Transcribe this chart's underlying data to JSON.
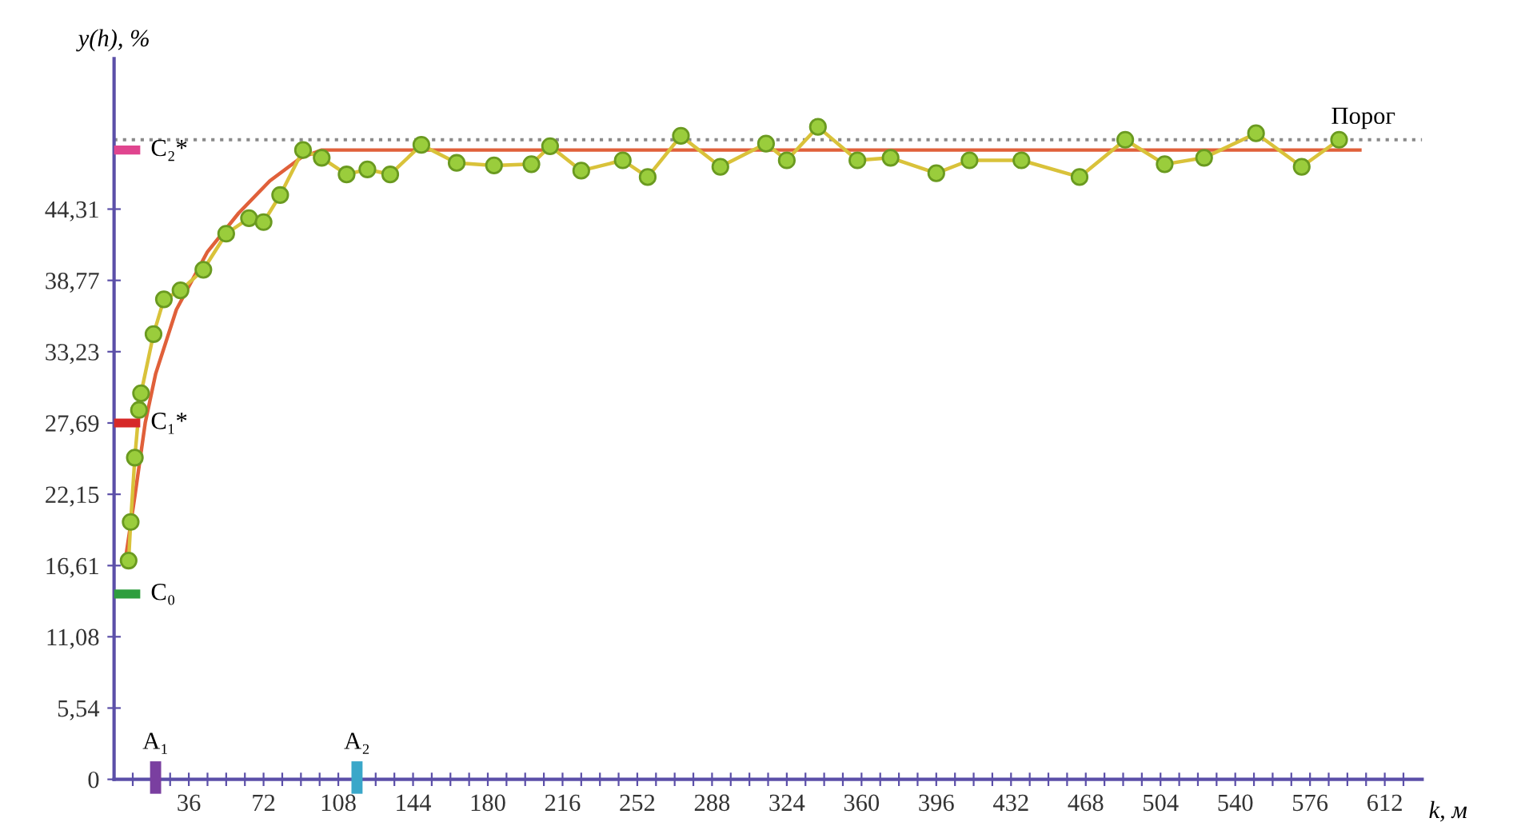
{
  "chart_data": {
    "type": "line",
    "xlabel": "k, м",
    "ylabel": "y(h), %",
    "xlim": [
      0,
      630
    ],
    "ylim": [
      0,
      56
    ],
    "xticks": [
      {
        "value": 9,
        "label": null
      },
      {
        "value": 18,
        "label": null
      },
      {
        "value": 27,
        "label": null
      },
      36,
      {
        "value": 45,
        "label": null
      },
      {
        "value": 54,
        "label": null
      },
      {
        "value": 63,
        "label": null
      },
      72,
      {
        "value": 81,
        "label": null
      },
      {
        "value": 90,
        "label": null
      },
      {
        "value": 99,
        "label": null
      },
      108,
      {
        "value": 117,
        "label": null
      },
      {
        "value": 126,
        "label": null
      },
      {
        "value": 135,
        "label": null
      },
      144,
      {
        "value": 153,
        "label": null
      },
      {
        "value": 162,
        "label": null
      },
      {
        "value": 171,
        "label": null
      },
      180,
      {
        "value": 189,
        "label": null
      },
      {
        "value": 198,
        "label": null
      },
      {
        "value": 207,
        "label": null
      },
      216,
      {
        "value": 225,
        "label": null
      },
      {
        "value": 234,
        "label": null
      },
      {
        "value": 243,
        "label": null
      },
      252,
      {
        "value": 261,
        "label": null
      },
      {
        "value": 270,
        "label": null
      },
      {
        "value": 279,
        "label": null
      },
      288,
      {
        "value": 297,
        "label": null
      },
      {
        "value": 306,
        "label": null
      },
      {
        "value": 315,
        "label": null
      },
      324,
      {
        "value": 333,
        "label": null
      },
      {
        "value": 342,
        "label": null
      },
      {
        "value": 351,
        "label": null
      },
      360,
      {
        "value": 369,
        "label": null
      },
      {
        "value": 378,
        "label": null
      },
      {
        "value": 387,
        "label": null
      },
      396,
      {
        "value": 405,
        "label": null
      },
      {
        "value": 414,
        "label": null
      },
      {
        "value": 423,
        "label": null
      },
      432,
      {
        "value": 441,
        "label": null
      },
      {
        "value": 450,
        "label": null
      },
      {
        "value": 459,
        "label": null
      },
      468,
      {
        "value": 477,
        "label": null
      },
      {
        "value": 486,
        "label": null
      },
      {
        "value": 495,
        "label": null
      },
      504,
      {
        "value": 513,
        "label": null
      },
      {
        "value": 522,
        "label": null
      },
      {
        "value": 531,
        "label": null
      },
      540,
      {
        "value": 549,
        "label": null
      },
      {
        "value": 558,
        "label": null
      },
      {
        "value": 567,
        "label": null
      },
      576,
      {
        "value": 585,
        "label": null
      },
      {
        "value": 594,
        "label": null
      },
      {
        "value": 603,
        "label": null
      },
      612,
      {
        "value": 621,
        "label": null
      }
    ],
    "yticks": [
      0,
      {
        "value": 5.54,
        "label": "5,54"
      },
      {
        "value": 11.08,
        "label": "11,08"
      },
      {
        "value": 16.61,
        "label": "16,61"
      },
      {
        "value": 22.15,
        "label": "22,15"
      },
      {
        "value": 27.69,
        "label": "27,69"
      },
      {
        "value": 33.23,
        "label": "33,23"
      },
      {
        "value": 38.77,
        "label": "38,77"
      },
      {
        "value": 44.31,
        "label": "44,31"
      }
    ],
    "grid": false,
    "legend": false,
    "series": [
      {
        "type": "line",
        "color": "#e0603a",
        "marker": "none",
        "line_style": "solid",
        "x": [
          5,
          10,
          15,
          20,
          30,
          45,
          60,
          75,
          90,
          100,
          600
        ],
        "values": [
          16.6,
          22,
          27.7,
          31.5,
          36.5,
          41,
          44,
          46.5,
          48.3,
          48.9,
          48.9
        ]
      },
      {
        "type": "line",
        "color": "#9acd3c",
        "marker": "circle",
        "line_style": "solid",
        "x": [
          7,
          8,
          10,
          12,
          13,
          19,
          24,
          32,
          43,
          54,
          65,
          72,
          80,
          91,
          100,
          112,
          122,
          133,
          148,
          165,
          183,
          201,
          210,
          225,
          245,
          257,
          273,
          292,
          314,
          324,
          339,
          358,
          374,
          396,
          412,
          437,
          465,
          487,
          506,
          525,
          550,
          572,
          590
        ],
        "values": [
          17,
          20,
          25,
          28.7,
          30,
          34.6,
          37.3,
          38,
          39.6,
          42.4,
          43.6,
          43.3,
          45.4,
          48.9,
          48.3,
          47,
          47.4,
          47,
          49.3,
          47.9,
          47.7,
          47.8,
          49.2,
          47.3,
          48.1,
          46.8,
          50,
          47.6,
          49.4,
          48.1,
          50.7,
          48.1,
          48.3,
          47.1,
          48.1,
          48.1,
          46.8,
          49.7,
          47.8,
          48.3,
          50.2,
          47.6,
          49.7
        ]
      }
    ],
    "ref_lines": [
      {
        "axis": "y",
        "value": 49.7,
        "label": "Порог",
        "color": "#8a8a8a",
        "line_style": "dotted"
      },
      {
        "axis": "y",
        "value": 48.9,
        "label": "C₂*",
        "color": "#e0458f"
      },
      {
        "axis": "y",
        "value": 27.69,
        "label": "C₁*",
        "color": "#d62828"
      },
      {
        "axis": "y",
        "value": 14.4,
        "label": "C₀",
        "color": "#2e9e3e"
      },
      {
        "axis": "x",
        "value": 20,
        "label": "A₁",
        "color": "#7a3fa0"
      },
      {
        "axis": "x",
        "value": 117,
        "label": "A₂",
        "color": "#3aa7c9"
      }
    ]
  }
}
